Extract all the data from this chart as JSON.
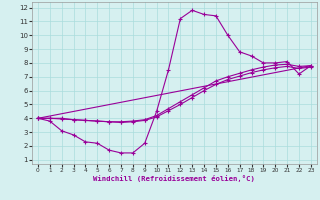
{
  "xlabel": "Windchill (Refroidissement éolien,°C)",
  "bg_color": "#d6f0f0",
  "line_color": "#990099",
  "grid_color": "#aadddd",
  "xlim": [
    -0.5,
    23.5
  ],
  "ylim": [
    0.7,
    12.4
  ],
  "xticks": [
    0,
    1,
    2,
    3,
    4,
    5,
    6,
    7,
    8,
    9,
    10,
    11,
    12,
    13,
    14,
    15,
    16,
    17,
    18,
    19,
    20,
    21,
    22,
    23
  ],
  "yticks": [
    1,
    2,
    3,
    4,
    5,
    6,
    7,
    8,
    9,
    10,
    11,
    12
  ],
  "line1_x": [
    0,
    1,
    2,
    3,
    4,
    5,
    6,
    7,
    8,
    9,
    10,
    11,
    12,
    13,
    14,
    15,
    16,
    17,
    18,
    19,
    20,
    21,
    22,
    23
  ],
  "line1_y": [
    4.0,
    3.8,
    3.1,
    2.8,
    2.3,
    2.2,
    1.7,
    1.5,
    1.5,
    2.2,
    4.5,
    7.5,
    11.2,
    11.8,
    11.5,
    11.4,
    10.0,
    8.8,
    8.5,
    8.0,
    8.0,
    8.1,
    7.2,
    7.8
  ],
  "line2_x": [
    0,
    1,
    2,
    3,
    4,
    5,
    6,
    7,
    8,
    9,
    10,
    11,
    12,
    13,
    14,
    15,
    16,
    17,
    18,
    19,
    20,
    21,
    22,
    23
  ],
  "line2_y": [
    4.0,
    4.0,
    4.0,
    3.9,
    3.85,
    3.8,
    3.75,
    3.75,
    3.8,
    3.9,
    4.2,
    4.7,
    5.2,
    5.7,
    6.2,
    6.7,
    7.0,
    7.25,
    7.5,
    7.7,
    7.85,
    7.9,
    7.75,
    7.8
  ],
  "line3_x": [
    0,
    1,
    2,
    3,
    4,
    5,
    6,
    7,
    8,
    9,
    10,
    11,
    12,
    13,
    14,
    15,
    16,
    17,
    18,
    19,
    20,
    21,
    22,
    23
  ],
  "line3_y": [
    4.0,
    4.0,
    3.95,
    3.9,
    3.85,
    3.8,
    3.75,
    3.7,
    3.75,
    3.85,
    4.1,
    4.55,
    5.0,
    5.5,
    6.0,
    6.45,
    6.8,
    7.05,
    7.3,
    7.5,
    7.65,
    7.75,
    7.6,
    7.7
  ],
  "line4_x": [
    0,
    23
  ],
  "line4_y": [
    4.0,
    7.8
  ]
}
